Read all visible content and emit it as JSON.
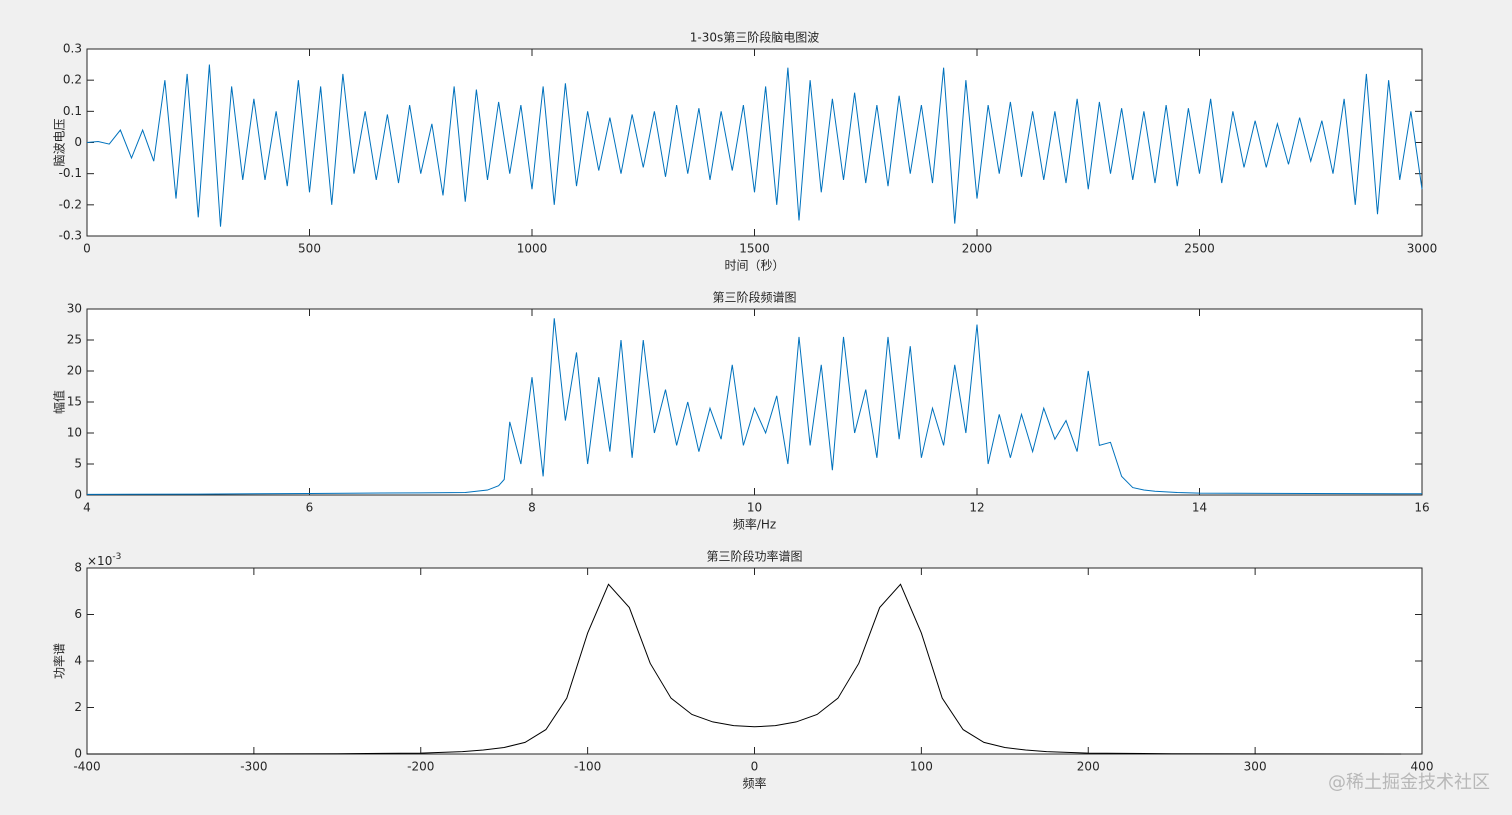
{
  "chart_data": [
    {
      "type": "line",
      "title": "1-30s第三阶段脑电图波",
      "x_label": "时间（秒）",
      "y_label": "脑波电压",
      "xlim": [
        0,
        3000
      ],
      "ylim": [
        -0.3,
        0.3
      ],
      "xticks": [
        0,
        500,
        1000,
        1500,
        2000,
        2500,
        3000
      ],
      "yticks": [
        -0.3,
        -0.2,
        -0.1,
        0,
        0.1,
        0.2,
        0.3
      ],
      "x": [
        0,
        25,
        50,
        75,
        100,
        125,
        150,
        175,
        200,
        225,
        250,
        275,
        300,
        325,
        350,
        375,
        400,
        425,
        450,
        475,
        500,
        525,
        550,
        575,
        600,
        625,
        650,
        675,
        700,
        725,
        750,
        775,
        800,
        825,
        850,
        875,
        900,
        925,
        950,
        975,
        1000,
        1025,
        1050,
        1075,
        1100,
        1125,
        1150,
        1175,
        1200,
        1225,
        1250,
        1275,
        1300,
        1325,
        1350,
        1375,
        1400,
        1425,
        1450,
        1475,
        1500,
        1525,
        1550,
        1575,
        1600,
        1625,
        1650,
        1675,
        1700,
        1725,
        1750,
        1775,
        1800,
        1825,
        1850,
        1875,
        1900,
        1925,
        1950,
        1975,
        2000,
        2025,
        2050,
        2075,
        2100,
        2125,
        2150,
        2175,
        2200,
        2225,
        2250,
        2275,
        2300,
        2325,
        2350,
        2375,
        2400,
        2425,
        2450,
        2475,
        2500,
        2525,
        2550,
        2575,
        2600,
        2625,
        2650,
        2675,
        2700,
        2725,
        2750,
        2775,
        2800,
        2825,
        2850,
        2875,
        2900,
        2925,
        2950,
        2975,
        3000
      ],
      "series": [
        {
          "color": "#0072bd",
          "values": [
            0,
            0.003,
            -0.005,
            0.04,
            -0.05,
            0.04,
            -0.06,
            0.2,
            -0.18,
            0.22,
            -0.24,
            0.25,
            -0.27,
            0.18,
            -0.12,
            0.14,
            -0.12,
            0.1,
            -0.14,
            0.2,
            -0.16,
            0.18,
            -0.2,
            0.22,
            -0.1,
            0.1,
            -0.12,
            0.09,
            -0.13,
            0.12,
            -0.1,
            0.06,
            -0.17,
            0.18,
            -0.19,
            0.17,
            -0.12,
            0.13,
            -0.1,
            0.12,
            -0.15,
            0.18,
            -0.2,
            0.19,
            -0.14,
            0.1,
            -0.09,
            0.08,
            -0.1,
            0.09,
            -0.08,
            0.1,
            -0.11,
            0.12,
            -0.1,
            0.11,
            -0.12,
            0.1,
            -0.09,
            0.12,
            -0.16,
            0.18,
            -0.2,
            0.24,
            -0.25,
            0.2,
            -0.16,
            0.14,
            -0.12,
            0.16,
            -0.13,
            0.12,
            -0.14,
            0.15,
            -0.1,
            0.12,
            -0.13,
            0.24,
            -0.26,
            0.2,
            -0.18,
            0.12,
            -0.1,
            0.13,
            -0.11,
            0.1,
            -0.12,
            0.1,
            -0.13,
            0.14,
            -0.15,
            0.13,
            -0.1,
            0.11,
            -0.12,
            0.1,
            -0.13,
            0.12,
            -0.14,
            0.11,
            -0.1,
            0.14,
            -0.13,
            0.1,
            -0.08,
            0.07,
            -0.08,
            0.06,
            -0.07,
            0.08,
            -0.06,
            0.07,
            -0.1,
            0.14,
            -0.2,
            0.22,
            -0.23,
            0.2,
            -0.12,
            0.1,
            -0.15
          ]
        }
      ]
    },
    {
      "type": "line",
      "title": "第三阶段频谱图",
      "x_label": "频率/Hz",
      "y_label": "幅值",
      "xlim": [
        4,
        16
      ],
      "ylim": [
        0,
        30
      ],
      "xticks": [
        4,
        6,
        8,
        10,
        12,
        14,
        16
      ],
      "yticks": [
        0,
        5,
        10,
        15,
        20,
        25,
        30
      ],
      "x": [
        4,
        5,
        6,
        7,
        7.4,
        7.5,
        7.6,
        7.7,
        7.75,
        7.8,
        7.9,
        8.0,
        8.1,
        8.2,
        8.3,
        8.4,
        8.5,
        8.6,
        8.7,
        8.8,
        8.9,
        9.0,
        9.1,
        9.2,
        9.3,
        9.4,
        9.5,
        9.6,
        9.7,
        9.8,
        9.9,
        10.0,
        10.1,
        10.2,
        10.3,
        10.4,
        10.5,
        10.6,
        10.7,
        10.8,
        10.9,
        11.0,
        11.1,
        11.2,
        11.3,
        11.4,
        11.5,
        11.6,
        11.7,
        11.8,
        11.9,
        12.0,
        12.1,
        12.2,
        12.3,
        12.4,
        12.5,
        12.6,
        12.7,
        12.8,
        12.9,
        13.0,
        13.1,
        13.2,
        13.3,
        13.4,
        13.5,
        13.6,
        13.8,
        14,
        15,
        16
      ],
      "series": [
        {
          "color": "#0072bd",
          "values": [
            0.1,
            0.15,
            0.25,
            0.35,
            0.4,
            0.6,
            0.8,
            1.5,
            2.5,
            11.8,
            5,
            19,
            3,
            28.5,
            12,
            23,
            5,
            19,
            7,
            25,
            6,
            25,
            10,
            17,
            8,
            15,
            7,
            14,
            9,
            21,
            8,
            14,
            10,
            16,
            5,
            25.5,
            8,
            21,
            4,
            25.5,
            10,
            17,
            6,
            25.5,
            9,
            24,
            6,
            14,
            8,
            21,
            10,
            27.5,
            5,
            13,
            6,
            13,
            7,
            14,
            9,
            12,
            7,
            20,
            8,
            8.5,
            3,
            1.2,
            0.8,
            0.6,
            0.4,
            0.3,
            0.25,
            0.2
          ]
        }
      ]
    },
    {
      "type": "line",
      "title": "第三阶段功率谱图",
      "x_label": "频率",
      "y_label": "功率谱",
      "y_multiplier_base": "×10",
      "y_multiplier_exponent": "-3",
      "xlim": [
        -400,
        400
      ],
      "ylim": [
        0,
        8
      ],
      "xticks": [
        -400,
        -300,
        -200,
        -100,
        0,
        100,
        200,
        300,
        400
      ],
      "yticks": [
        0,
        2,
        4,
        6,
        8
      ],
      "x": [
        -400,
        -300,
        -250,
        -200,
        -175,
        -162.5,
        -150,
        -137.5,
        -125,
        -112.5,
        -100,
        -87.5,
        -75,
        -62.5,
        -50,
        -37.5,
        -25,
        -12.5,
        0,
        12.5,
        25,
        37.5,
        50,
        62.5,
        75,
        87.5,
        100,
        112.5,
        125,
        137.5,
        150,
        162.5,
        175,
        200,
        250,
        300,
        387.5
      ],
      "series": [
        {
          "color": "#000000",
          "values": [
            0,
            0.005,
            0.01,
            0.04,
            0.1,
            0.17,
            0.28,
            0.5,
            1.05,
            2.4,
            5.2,
            7.3,
            6.3,
            3.9,
            2.4,
            1.7,
            1.38,
            1.22,
            1.17,
            1.22,
            1.38,
            1.7,
            2.4,
            3.9,
            6.3,
            7.3,
            5.2,
            2.4,
            1.05,
            0.5,
            0.28,
            0.17,
            0.1,
            0.04,
            0.01,
            0.005,
            0
          ]
        }
      ]
    }
  ],
  "watermark": "@稀土掘金技术社区"
}
